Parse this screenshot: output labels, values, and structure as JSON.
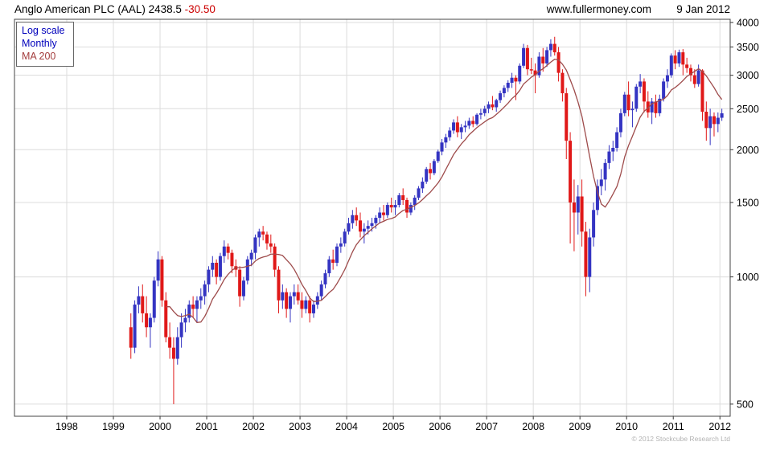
{
  "header": {
    "title": "Anglo American PLC (AAL) 2438.5",
    "change": "-30.50",
    "site": "www.fullermoney.com",
    "date": "9 Jan 2012"
  },
  "legend": {
    "items": [
      {
        "label": "Log scale",
        "color": "#0000bb"
      },
      {
        "label": "Monthly",
        "color": "#0000bb"
      },
      {
        "label": "MA 200",
        "color": "#a33c3c"
      }
    ]
  },
  "footer": {
    "copyright": "© 2012 Stockcube Research Ltd"
  },
  "chart_data": {
    "type": "candlestick",
    "title": "Anglo American PLC (AAL)",
    "scale": "log",
    "interval": "monthly",
    "last_price": 2438.5,
    "change": -30.5,
    "overlay": "MA 200 (approx. 10-month moving average of closes)",
    "ylim": [
      468,
      4070
    ],
    "xlim_years": [
      1996.88,
      2012.22
    ],
    "y_ticks": [
      500,
      1000,
      1500,
      2000,
      2500,
      3000,
      3500,
      4000
    ],
    "x_ticks": [
      1998,
      1999,
      2000,
      2001,
      2002,
      2003,
      2004,
      2005,
      2006,
      2007,
      2008,
      2009,
      2010,
      2011,
      2012
    ],
    "grid": true,
    "up_color": "#3434c2",
    "down_color": "#e01818",
    "ma_color": "#9e4b4b",
    "candle_fields": [
      "month",
      "open",
      "high",
      "low",
      "close"
    ],
    "candles": [
      [
        "1999-05",
        760,
        820,
        640,
        680
      ],
      [
        "1999-06",
        680,
        880,
        660,
        860
      ],
      [
        "1999-07",
        860,
        950,
        820,
        900
      ],
      [
        "1999-08",
        900,
        960,
        780,
        820
      ],
      [
        "1999-09",
        820,
        900,
        720,
        760
      ],
      [
        "1999-10",
        760,
        820,
        680,
        800
      ],
      [
        "1999-11",
        800,
        1000,
        780,
        980
      ],
      [
        "1999-12",
        980,
        1150,
        950,
        1100
      ],
      [
        "2000-01",
        1100,
        1120,
        850,
        880
      ],
      [
        "2000-02",
        880,
        920,
        700,
        720
      ],
      [
        "2000-03",
        720,
        780,
        640,
        680
      ],
      [
        "2000-04",
        680,
        720,
        500,
        640
      ],
      [
        "2000-05",
        640,
        760,
        620,
        720
      ],
      [
        "2000-06",
        720,
        820,
        680,
        780
      ],
      [
        "2000-07",
        780,
        840,
        740,
        800
      ],
      [
        "2000-08",
        800,
        880,
        780,
        860
      ],
      [
        "2000-09",
        860,
        900,
        800,
        840
      ],
      [
        "2000-10",
        840,
        900,
        780,
        880
      ],
      [
        "2000-11",
        880,
        940,
        840,
        900
      ],
      [
        "2000-12",
        900,
        980,
        860,
        960
      ],
      [
        "2001-01",
        960,
        1060,
        920,
        1040
      ],
      [
        "2001-02",
        1040,
        1120,
        1000,
        1080
      ],
      [
        "2001-03",
        1080,
        1100,
        960,
        1000
      ],
      [
        "2001-04",
        1000,
        1140,
        980,
        1120
      ],
      [
        "2001-05",
        1120,
        1220,
        1080,
        1180
      ],
      [
        "2001-06",
        1180,
        1200,
        1100,
        1140
      ],
      [
        "2001-07",
        1140,
        1160,
        1020,
        1060
      ],
      [
        "2001-08",
        1060,
        1100,
        1000,
        1040
      ],
      [
        "2001-09",
        1040,
        1060,
        850,
        900
      ],
      [
        "2001-10",
        900,
        1000,
        880,
        980
      ],
      [
        "2001-11",
        980,
        1120,
        960,
        1100
      ],
      [
        "2001-12",
        1100,
        1160,
        1060,
        1140
      ],
      [
        "2002-01",
        1140,
        1260,
        1100,
        1240
      ],
      [
        "2002-02",
        1240,
        1300,
        1180,
        1280
      ],
      [
        "2002-03",
        1280,
        1320,
        1220,
        1260
      ],
      [
        "2002-04",
        1260,
        1280,
        1160,
        1200
      ],
      [
        "2002-05",
        1200,
        1260,
        1140,
        1180
      ],
      [
        "2002-06",
        1180,
        1200,
        1000,
        1040
      ],
      [
        "2002-07",
        1040,
        1060,
        820,
        880
      ],
      [
        "2002-08",
        880,
        960,
        840,
        920
      ],
      [
        "2002-09",
        920,
        940,
        800,
        840
      ],
      [
        "2002-10",
        840,
        920,
        780,
        900
      ],
      [
        "2002-11",
        900,
        960,
        860,
        920
      ],
      [
        "2002-12",
        920,
        960,
        860,
        880
      ],
      [
        "2003-01",
        880,
        920,
        800,
        840
      ],
      [
        "2003-02",
        840,
        900,
        820,
        880
      ],
      [
        "2003-03",
        880,
        900,
        780,
        820
      ],
      [
        "2003-04",
        820,
        880,
        800,
        860
      ],
      [
        "2003-05",
        860,
        920,
        840,
        900
      ],
      [
        "2003-06",
        900,
        980,
        880,
        960
      ],
      [
        "2003-07",
        960,
        1040,
        940,
        1020
      ],
      [
        "2003-08",
        1020,
        1120,
        1000,
        1100
      ],
      [
        "2003-09",
        1100,
        1160,
        1040,
        1080
      ],
      [
        "2003-10",
        1080,
        1200,
        1060,
        1180
      ],
      [
        "2003-11",
        1180,
        1240,
        1140,
        1200
      ],
      [
        "2003-12",
        1200,
        1300,
        1180,
        1280
      ],
      [
        "2004-01",
        1280,
        1380,
        1260,
        1340
      ],
      [
        "2004-02",
        1340,
        1440,
        1300,
        1400
      ],
      [
        "2004-03",
        1400,
        1460,
        1320,
        1360
      ],
      [
        "2004-04",
        1360,
        1420,
        1240,
        1280
      ],
      [
        "2004-05",
        1280,
        1340,
        1200,
        1300
      ],
      [
        "2004-06",
        1300,
        1360,
        1260,
        1320
      ],
      [
        "2004-07",
        1320,
        1380,
        1280,
        1340
      ],
      [
        "2004-08",
        1340,
        1400,
        1300,
        1380
      ],
      [
        "2004-09",
        1380,
        1460,
        1340,
        1420
      ],
      [
        "2004-10",
        1420,
        1480,
        1360,
        1400
      ],
      [
        "2004-11",
        1400,
        1500,
        1380,
        1480
      ],
      [
        "2004-12",
        1480,
        1540,
        1420,
        1460
      ],
      [
        "2005-01",
        1460,
        1520,
        1400,
        1480
      ],
      [
        "2005-02",
        1480,
        1580,
        1460,
        1560
      ],
      [
        "2005-03",
        1560,
        1620,
        1480,
        1520
      ],
      [
        "2005-04",
        1520,
        1540,
        1380,
        1420
      ],
      [
        "2005-05",
        1420,
        1500,
        1400,
        1480
      ],
      [
        "2005-06",
        1480,
        1560,
        1440,
        1540
      ],
      [
        "2005-07",
        1540,
        1640,
        1520,
        1620
      ],
      [
        "2005-08",
        1620,
        1720,
        1580,
        1680
      ],
      [
        "2005-09",
        1680,
        1820,
        1660,
        1800
      ],
      [
        "2005-10",
        1800,
        1860,
        1700,
        1760
      ],
      [
        "2005-11",
        1760,
        1900,
        1740,
        1880
      ],
      [
        "2005-12",
        1880,
        2000,
        1860,
        1980
      ],
      [
        "2006-01",
        1980,
        2120,
        1940,
        2080
      ],
      [
        "2006-02",
        2080,
        2180,
        2020,
        2140
      ],
      [
        "2006-03",
        2140,
        2260,
        2100,
        2220
      ],
      [
        "2006-04",
        2220,
        2360,
        2180,
        2320
      ],
      [
        "2006-05",
        2320,
        2400,
        2140,
        2200
      ],
      [
        "2006-06",
        2200,
        2300,
        2120,
        2260
      ],
      [
        "2006-07",
        2260,
        2340,
        2200,
        2280
      ],
      [
        "2006-08",
        2280,
        2380,
        2240,
        2340
      ],
      [
        "2006-09",
        2340,
        2400,
        2260,
        2300
      ],
      [
        "2006-10",
        2300,
        2440,
        2280,
        2420
      ],
      [
        "2006-11",
        2420,
        2500,
        2360,
        2440
      ],
      [
        "2006-12",
        2440,
        2540,
        2400,
        2500
      ],
      [
        "2007-01",
        2500,
        2600,
        2440,
        2560
      ],
      [
        "2007-02",
        2560,
        2680,
        2480,
        2520
      ],
      [
        "2007-03",
        2520,
        2640,
        2460,
        2620
      ],
      [
        "2007-04",
        2620,
        2760,
        2580,
        2720
      ],
      [
        "2007-05",
        2720,
        2840,
        2660,
        2800
      ],
      [
        "2007-06",
        2800,
        2920,
        2740,
        2880
      ],
      [
        "2007-07",
        2880,
        3040,
        2800,
        2960
      ],
      [
        "2007-08",
        2960,
        3000,
        2620,
        2900
      ],
      [
        "2007-09",
        2900,
        3200,
        2860,
        3160
      ],
      [
        "2007-10",
        3160,
        3560,
        3120,
        3480
      ],
      [
        "2007-11",
        3480,
        3540,
        3000,
        3100
      ],
      [
        "2007-12",
        3100,
        3300,
        3020,
        3080
      ],
      [
        "2008-01",
        3080,
        3200,
        2720,
        3000
      ],
      [
        "2008-02",
        3000,
        3400,
        2960,
        3320
      ],
      [
        "2008-03",
        3320,
        3480,
        3060,
        3200
      ],
      [
        "2008-04",
        3200,
        3500,
        3140,
        3440
      ],
      [
        "2008-05",
        3440,
        3650,
        3320,
        3560
      ],
      [
        "2008-06",
        3560,
        3700,
        3340,
        3400
      ],
      [
        "2008-07",
        3400,
        3500,
        2900,
        3040
      ],
      [
        "2008-08",
        3040,
        3100,
        2600,
        2720
      ],
      [
        "2008-09",
        2720,
        2800,
        1900,
        2100
      ],
      [
        "2008-10",
        2100,
        2200,
        1200,
        1500
      ],
      [
        "2008-11",
        1500,
        1700,
        1150,
        1420
      ],
      [
        "2008-12",
        1420,
        1650,
        1260,
        1550
      ],
      [
        "2009-01",
        1550,
        1700,
        1180,
        1280
      ],
      [
        "2009-02",
        1280,
        1350,
        900,
        1000
      ],
      [
        "2009-03",
        1000,
        1300,
        920,
        1240
      ],
      [
        "2009-04",
        1240,
        1500,
        1180,
        1440
      ],
      [
        "2009-05",
        1440,
        1700,
        1400,
        1640
      ],
      [
        "2009-06",
        1640,
        1800,
        1560,
        1700
      ],
      [
        "2009-07",
        1700,
        1900,
        1600,
        1860
      ],
      [
        "2009-08",
        1860,
        2050,
        1800,
        1980
      ],
      [
        "2009-09",
        1980,
        2100,
        1880,
        2020
      ],
      [
        "2009-10",
        2020,
        2260,
        1980,
        2200
      ],
      [
        "2009-11",
        2200,
        2500,
        2140,
        2440
      ],
      [
        "2009-12",
        2440,
        2740,
        2400,
        2700
      ],
      [
        "2010-01",
        2700,
        2900,
        2400,
        2480
      ],
      [
        "2010-02",
        2480,
        2600,
        2260,
        2500
      ],
      [
        "2010-03",
        2500,
        2860,
        2460,
        2820
      ],
      [
        "2010-04",
        2820,
        3020,
        2720,
        2900
      ],
      [
        "2010-05",
        2900,
        2950,
        2450,
        2600
      ],
      [
        "2010-06",
        2600,
        2750,
        2380,
        2450
      ],
      [
        "2010-07",
        2450,
        2650,
        2300,
        2600
      ],
      [
        "2010-08",
        2600,
        2700,
        2380,
        2440
      ],
      [
        "2010-09",
        2440,
        2700,
        2400,
        2640
      ],
      [
        "2010-10",
        2640,
        2950,
        2600,
        2900
      ],
      [
        "2010-11",
        2900,
        3100,
        2800,
        3000
      ],
      [
        "2010-12",
        3000,
        3380,
        2960,
        3340
      ],
      [
        "2011-01",
        3340,
        3440,
        3100,
        3200
      ],
      [
        "2011-02",
        3200,
        3450,
        3140,
        3400
      ],
      [
        "2011-03",
        3400,
        3460,
        3000,
        3180
      ],
      [
        "2011-04",
        3180,
        3300,
        3040,
        3120
      ],
      [
        "2011-05",
        3120,
        3180,
        2900,
        3000
      ],
      [
        "2011-06",
        3000,
        3100,
        2800,
        2860
      ],
      [
        "2011-07",
        2860,
        3180,
        2820,
        3080
      ],
      [
        "2011-08",
        3080,
        3100,
        2340,
        2460
      ],
      [
        "2011-09",
        2460,
        2600,
        2100,
        2250
      ],
      [
        "2011-10",
        2250,
        2500,
        2050,
        2400
      ],
      [
        "2011-11",
        2400,
        2450,
        2150,
        2300
      ],
      [
        "2011-12",
        2300,
        2450,
        2200,
        2380
      ],
      [
        "2012-01",
        2380,
        2500,
        2340,
        2438.5
      ]
    ]
  }
}
